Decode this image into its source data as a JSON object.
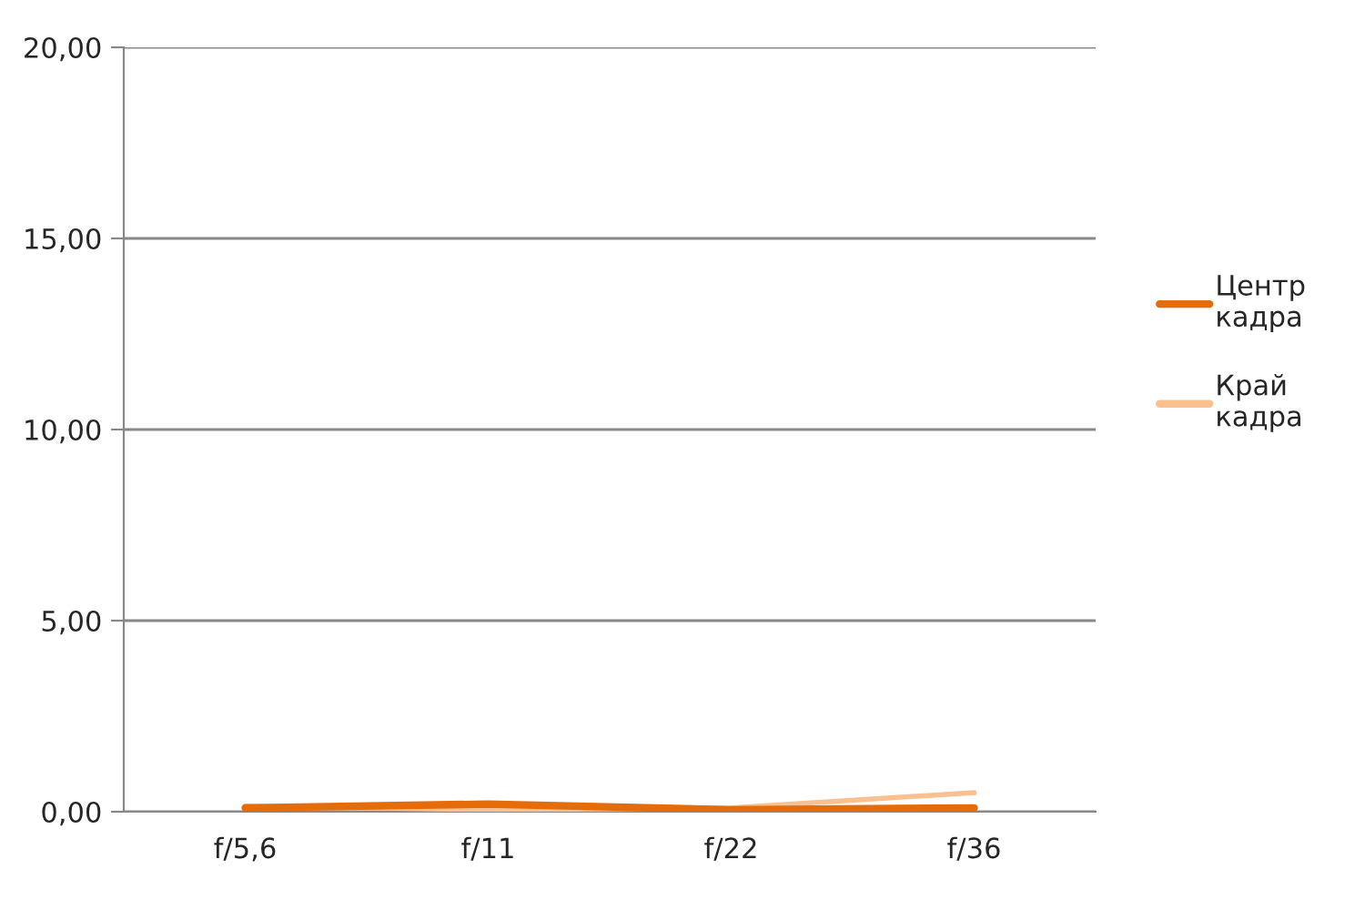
{
  "chart_data": {
    "type": "line",
    "categories": [
      "f/5,6",
      "f/11",
      "f/22",
      "f/36"
    ],
    "series": [
      {
        "name": "Центр\nкадра",
        "color": "#e46c0a",
        "values": [
          0.1,
          0.2,
          0.05,
          0.1
        ]
      },
      {
        "name": "Край\nкадра",
        "color": "#fac090",
        "values": [
          0.15,
          0.05,
          0.1,
          0.5
        ]
      }
    ],
    "ylim": [
      0,
      20
    ],
    "yticks": [
      {
        "value": 0,
        "label": "0,00"
      },
      {
        "value": 5,
        "label": "5,00"
      },
      {
        "value": 10,
        "label": "10,00"
      },
      {
        "value": 15,
        "label": "15,00"
      },
      {
        "value": 20,
        "label": "20,00"
      }
    ],
    "grid": "y",
    "legend": "right",
    "marker": "none",
    "line_style": "solid"
  }
}
